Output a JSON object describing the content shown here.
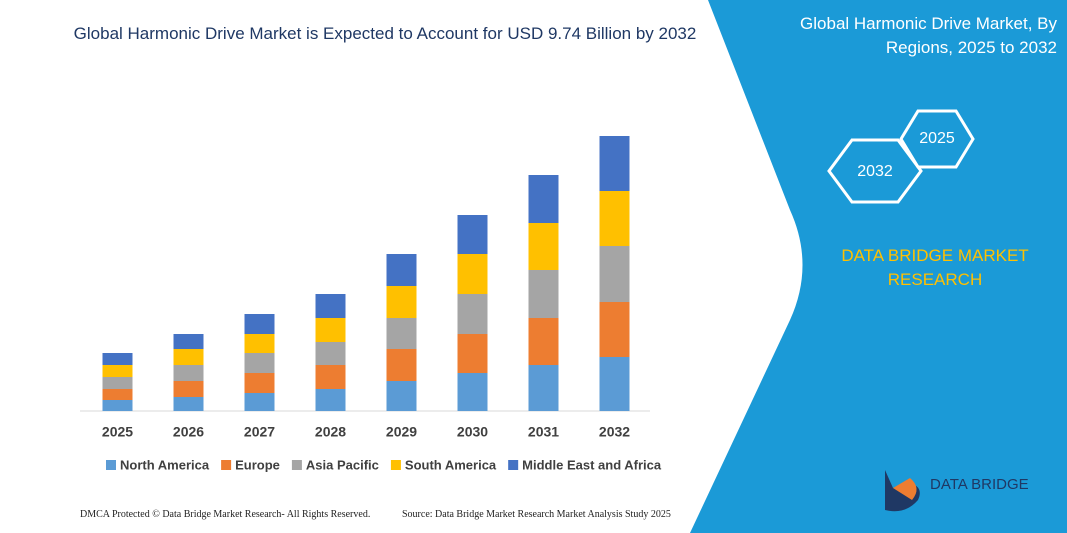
{
  "chart_data": {
    "type": "bar",
    "stacked": true,
    "title": "Global Harmonic Drive Market is Expected to Account for USD 9.74 Billion by 2032",
    "categories": [
      "2025",
      "2026",
      "2027",
      "2028",
      "2029",
      "2030",
      "2031",
      "2032"
    ],
    "series": [
      {
        "name": "North America",
        "color": "#5b9bd5",
        "values": [
          11,
          14,
          18,
          22,
          30,
          38,
          46,
          54
        ]
      },
      {
        "name": "Europe",
        "color": "#ed7d31",
        "values": [
          11,
          16,
          20,
          24,
          32,
          39,
          47,
          55
        ]
      },
      {
        "name": "Asia Pacific",
        "color": "#a5a5a5",
        "values": [
          12,
          16,
          20,
          23,
          31,
          40,
          48,
          56
        ]
      },
      {
        "name": "South America",
        "color": "#ffc000",
        "values": [
          12,
          16,
          19,
          24,
          32,
          40,
          47,
          55
        ]
      },
      {
        "name": "Middle East and Africa",
        "color": "#4472c4",
        "values": [
          12,
          15,
          20,
          24,
          32,
          39,
          48,
          55
        ]
      }
    ],
    "ylim": [
      0,
      300
    ],
    "legend": "bottom"
  },
  "panel": {
    "title": "Global Harmonic Drive Market, By Regions, 2025 to 2032",
    "hex_top": "2025",
    "hex_bottom": "2032",
    "brand": "DATA BRIDGE MARKET RESEARCH"
  },
  "footer": {
    "left": "DMCA Protected © Data Bridge Market Research- All Rights Reserved.",
    "right": "Source: Data Bridge Market Research Market Analysis Study 2025"
  },
  "logo": "DATA BRIDGE"
}
